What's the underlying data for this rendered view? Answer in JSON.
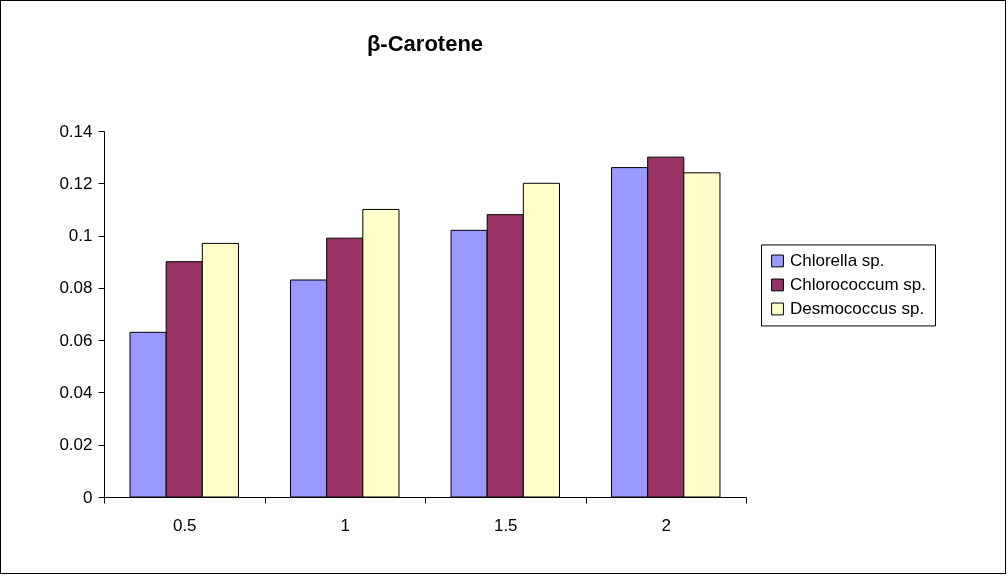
{
  "chart_data": {
    "type": "bar",
    "title": "β-Carotene",
    "categories": [
      "0.5",
      "1",
      "1.5",
      "2"
    ],
    "series": [
      {
        "name": "Chlorella sp.",
        "color": "#9999ff",
        "values": [
          0.063,
          0.083,
          0.102,
          0.126
        ]
      },
      {
        "name": "Chlorococcum sp.",
        "color": "#993366",
        "values": [
          0.09,
          0.099,
          0.108,
          0.13
        ]
      },
      {
        "name": "Desmococcus sp.",
        "color": "#ffffcc",
        "values": [
          0.097,
          0.11,
          0.12,
          0.124
        ]
      }
    ],
    "ylim": [
      0,
      0.14
    ],
    "yticks": [
      0,
      0.02,
      0.04,
      0.06,
      0.08,
      0.1,
      0.12,
      0.14
    ],
    "grid": false,
    "legend": "right"
  }
}
